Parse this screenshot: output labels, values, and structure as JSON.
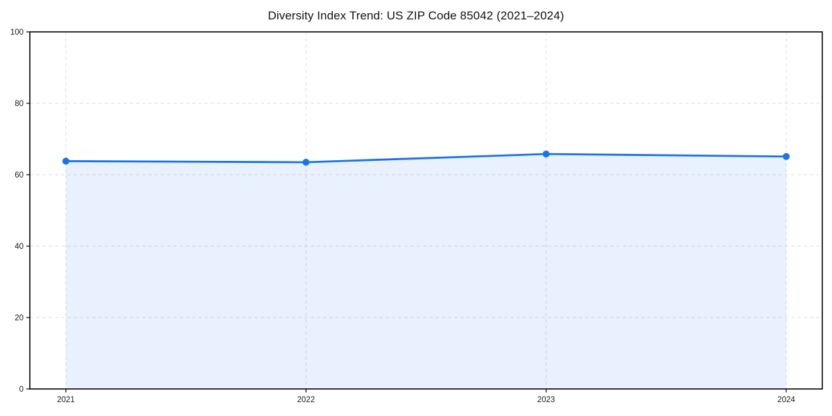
{
  "chart_data": {
    "type": "area",
    "title": "Diversity Index Trend: US ZIP Code 85042 (2021–2024)",
    "x": [
      2021,
      2022,
      2023,
      2024
    ],
    "x_tick_labels": [
      "2021",
      "2022",
      "2023",
      "2024"
    ],
    "series": [
      {
        "name": "Diversity Index",
        "values": [
          63.8,
          63.5,
          65.8,
          65.1
        ]
      }
    ],
    "xlabel": "",
    "ylabel": "",
    "ylim": [
      0,
      100
    ],
    "yticks": [
      0,
      20,
      40,
      60,
      80,
      100
    ],
    "y_tick_labels": [
      "0",
      "20",
      "40",
      "60",
      "80",
      "100"
    ],
    "grid": "dashed, both axes",
    "legend": "none",
    "colors": {
      "line": "#1a73e8",
      "marker": "#1a73e8",
      "fill": "#1a73e8",
      "fill_opacity": 0.1,
      "gridline": "#dedede",
      "spine": "#000000",
      "tick_label": "#1a1a1a",
      "title": "#111111",
      "background": "#ffffff"
    }
  }
}
